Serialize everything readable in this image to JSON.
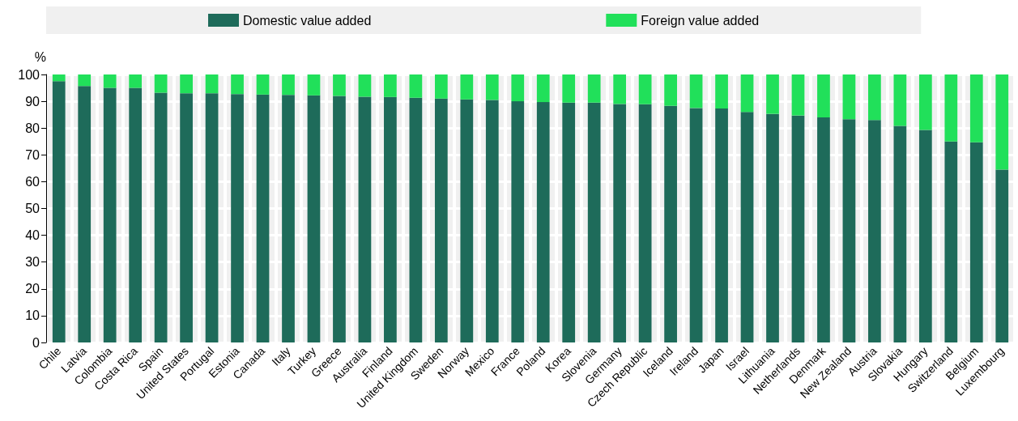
{
  "chart_data": {
    "type": "bar",
    "stacked": true,
    "ylabel": "%",
    "categories": [
      "Chile",
      "Latvia",
      "Colombia",
      "Costa Rica",
      "Spain",
      "United States",
      "Portugal",
      "Estonia",
      "Canada",
      "Italy",
      "Turkey",
      "Greece",
      "Australia",
      "Finland",
      "United Kingdom",
      "Sweden",
      "Norway",
      "Mexico",
      "France",
      "Poland",
      "Korea",
      "Slovenia",
      "Germany",
      "Czech Republic",
      "Iceland",
      "Ireland",
      "Japan",
      "Israel",
      "Lithuania",
      "Netherlands",
      "Denmark",
      "New Zealand",
      "Austria",
      "Slovakia",
      "Hungary",
      "Switzerland",
      "Belgium",
      "Luxembourg"
    ],
    "series": [
      {
        "name": "Domestic value added",
        "color": "#1e6b5a",
        "values": [
          97.5,
          95.7,
          95,
          95,
          93.2,
          93,
          93,
          92.7,
          92.5,
          92.4,
          92.2,
          92,
          91.7,
          91.6,
          91.3,
          91,
          90.7,
          90.5,
          90,
          89.7,
          89.5,
          89.5,
          89,
          88.9,
          88.3,
          87.5,
          87.3,
          86,
          85.3,
          84.7,
          84,
          83.3,
          83,
          80.8,
          79.3,
          75,
          74.7,
          64.5
        ]
      },
      {
        "name": "Foreign value added",
        "color": "#21e05a",
        "values": [
          2.5,
          4.3,
          5,
          5,
          6.8,
          7,
          7,
          7.3,
          7.5,
          7.6,
          7.8,
          8,
          8.3,
          8.4,
          8.7,
          9,
          9.3,
          9.5,
          10,
          10.3,
          10.5,
          10.5,
          11,
          11.1,
          11.7,
          12.5,
          12.7,
          14,
          14.7,
          15.3,
          16,
          16.7,
          17,
          19.2,
          20.7,
          25,
          25.3,
          35.5
        ]
      }
    ],
    "ylim": [
      0,
      100
    ],
    "yticks": [
      0,
      10,
      20,
      30,
      40,
      50,
      60,
      70,
      80,
      90,
      100
    ],
    "grid": true,
    "legend": "top"
  }
}
